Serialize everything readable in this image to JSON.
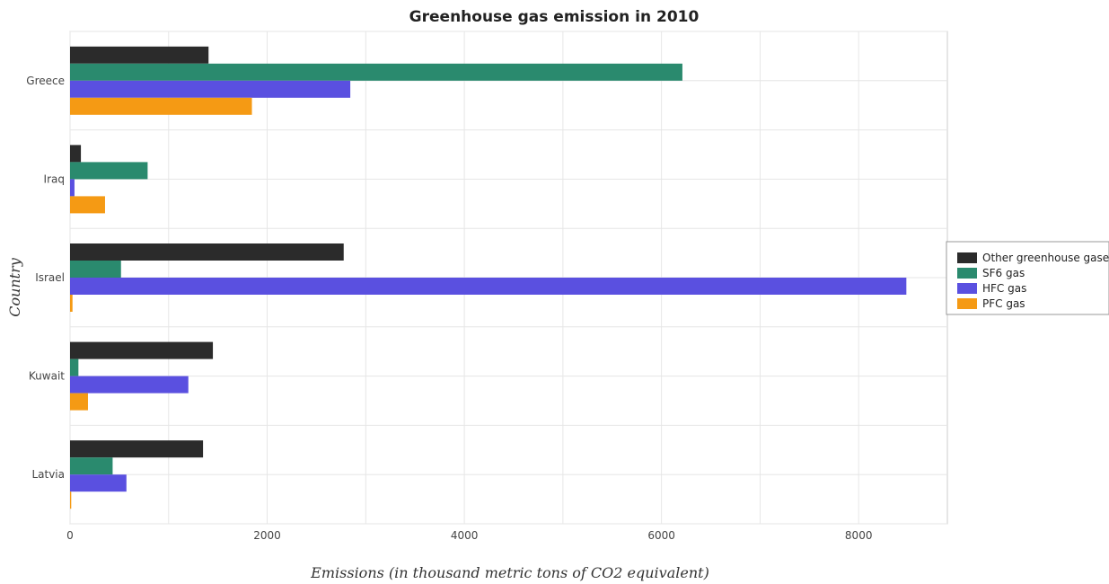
{
  "chart_data": {
    "type": "bar",
    "orientation": "horizontal",
    "title": "Greenhouse gas emission in 2010",
    "xlabel": "Emissions (in thousand metric tons of CO2 equivalent)",
    "ylabel": "Country",
    "categories": [
      "Greece",
      "Iraq",
      "Israel",
      "Kuwait",
      "Latvia"
    ],
    "xlim": [
      0,
      8900
    ],
    "xticks": [
      0,
      2000,
      4000,
      6000,
      8000
    ],
    "grid": true,
    "legend_position": "right",
    "series": [
      {
        "name": "Other greenhouse gases",
        "color": "#2b2b2b",
        "values": [
          1405,
          110,
          2776,
          1449,
          1349
        ]
      },
      {
        "name": "SF6 gas",
        "color": "#2a8a6e",
        "values": [
          6212,
          787,
          517,
          85,
          432
        ]
      },
      {
        "name": "HFC gas",
        "color": "#5a50e0",
        "values": [
          2843,
          45,
          8484,
          1200,
          572
        ]
      },
      {
        "name": "PFC gas",
        "color": "#f59a14",
        "values": [
          1845,
          355,
          25,
          182,
          12
        ]
      }
    ]
  }
}
